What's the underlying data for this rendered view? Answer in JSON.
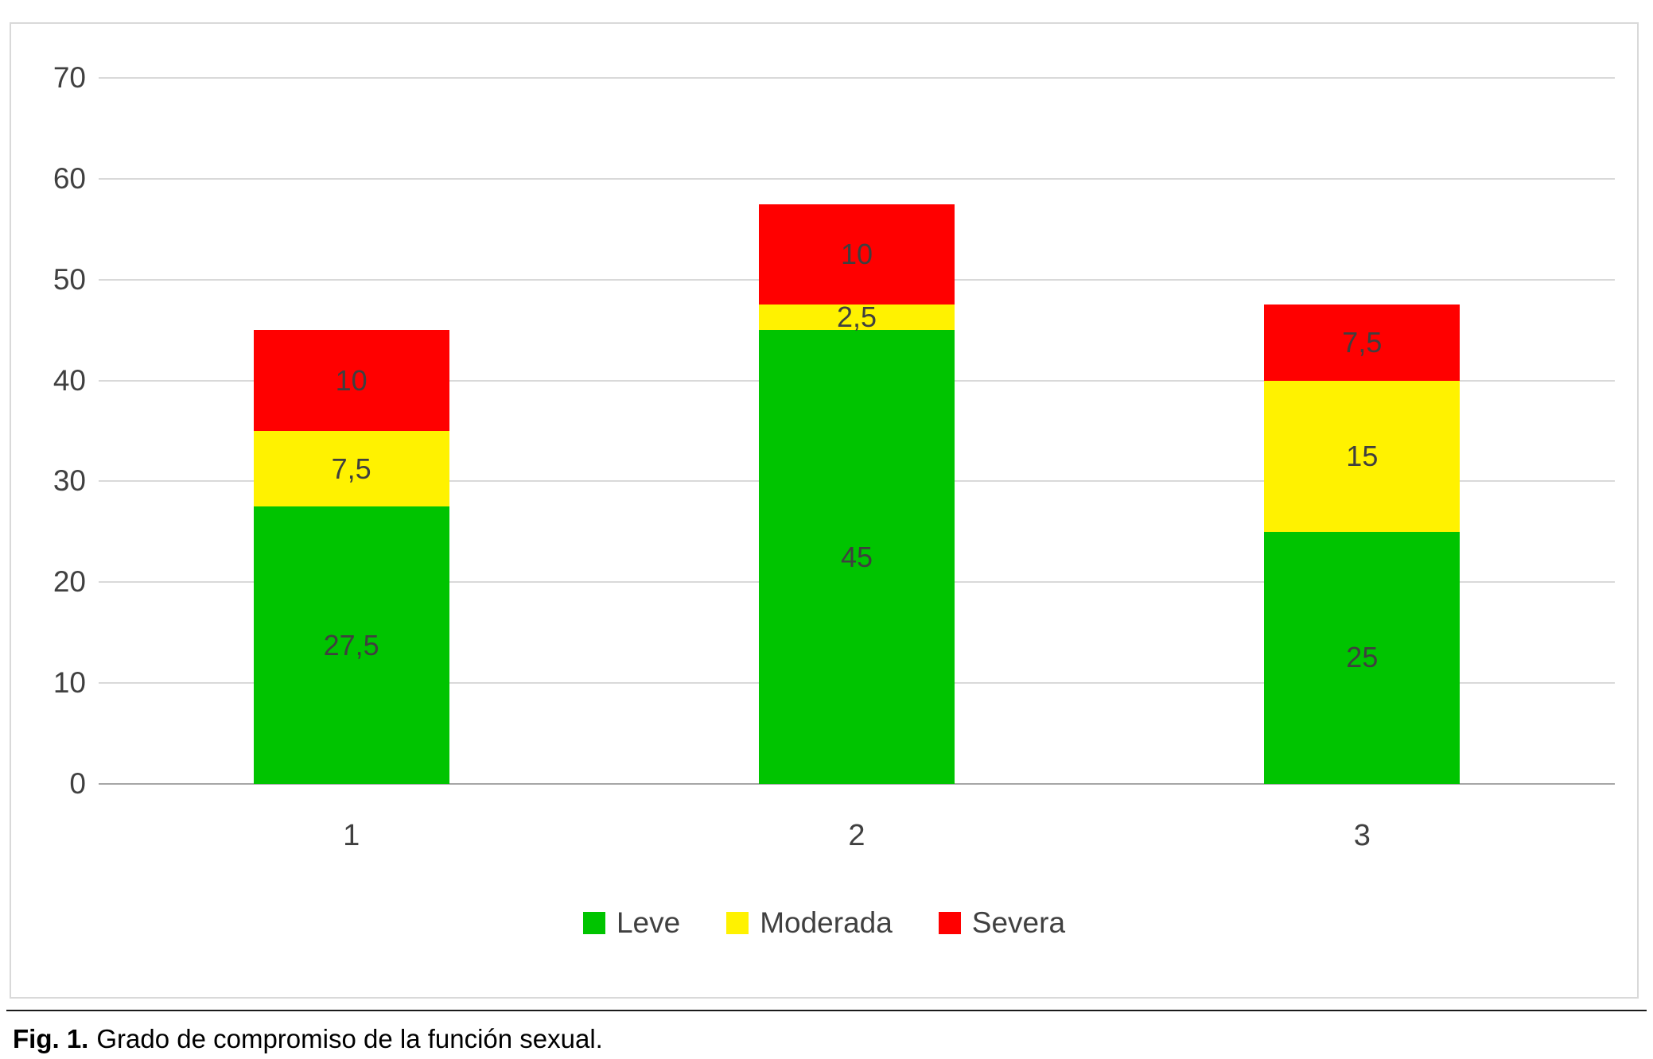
{
  "chart_data": {
    "type": "bar",
    "stacked": true,
    "title": "",
    "xlabel": "",
    "ylabel": "",
    "categories": [
      "1",
      "2",
      "3"
    ],
    "series": [
      {
        "name": "Leve",
        "color": "#00c400",
        "values": [
          27.5,
          45,
          25
        ],
        "labels": [
          "27,5",
          "45",
          "25"
        ]
      },
      {
        "name": "Moderada",
        "color": "#fff200",
        "values": [
          7.5,
          2.5,
          15
        ],
        "labels": [
          "7,5",
          "2,5",
          "15"
        ]
      },
      {
        "name": "Severa",
        "color": "#ff0000",
        "values": [
          10,
          10,
          7.5
        ],
        "labels": [
          "10",
          "10",
          "7,5"
        ]
      }
    ],
    "ylim": [
      0,
      70
    ],
    "yticks": [
      0,
      10,
      20,
      30,
      40,
      50,
      60,
      70
    ],
    "grid": true,
    "legend_position": "bottom"
  },
  "caption": {
    "prefix": "Fig. 1.",
    "text": "Grado de compromiso de la función sexual."
  }
}
